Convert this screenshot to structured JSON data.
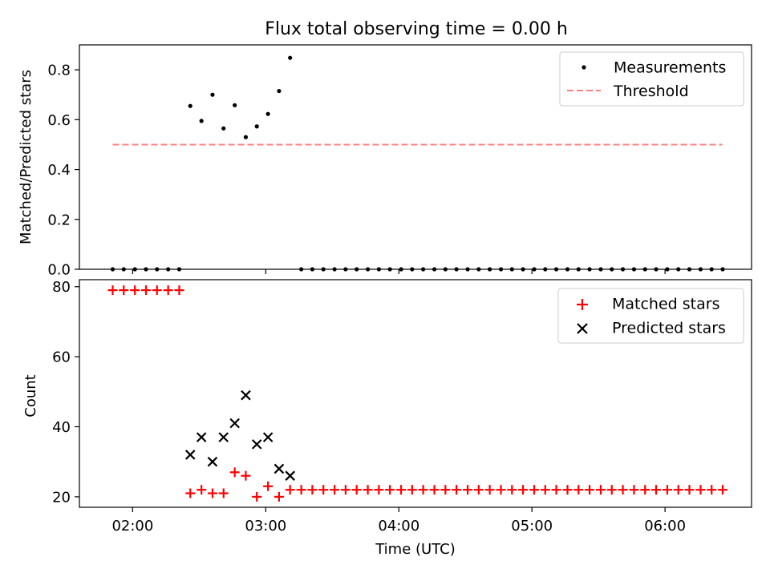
{
  "chart_data": {
    "title": "Flux total observing time = 0.00 h",
    "xlabel": "Time (UTC)",
    "x_ticks": [
      "02:00",
      "03:00",
      "04:00",
      "05:00",
      "06:00"
    ],
    "x_tick_hours": [
      2,
      3,
      4,
      5,
      6
    ],
    "xlim_hours": [
      1.6,
      6.65
    ],
    "top": {
      "type": "scatter",
      "ylabel": "Matched/Predicted stars",
      "ylim": [
        0,
        0.9
      ],
      "y_ticks": [
        "0.0",
        "0.2",
        "0.4",
        "0.6",
        "0.8"
      ],
      "y_tick_values": [
        0,
        0.2,
        0.4,
        0.6,
        0.8
      ],
      "threshold": {
        "name": "Threshold",
        "value": 0.5,
        "x_start_hours": 1.85,
        "x_end_hours": 6.43,
        "color": "#ff7f7f"
      },
      "measurements": {
        "name": "Measurements",
        "color": "#000000",
        "points": [
          [
            1.85,
            0
          ],
          [
            1.933,
            0
          ],
          [
            2.017,
            0
          ],
          [
            2.1,
            0
          ],
          [
            2.183,
            0
          ],
          [
            2.267,
            0
          ],
          [
            2.35,
            0
          ],
          [
            2.433,
            0.655
          ],
          [
            2.517,
            0.595
          ],
          [
            2.6,
            0.7
          ],
          [
            2.683,
            0.565
          ],
          [
            2.767,
            0.658
          ],
          [
            2.85,
            0.53
          ],
          [
            2.933,
            0.573
          ],
          [
            3.017,
            0.623
          ],
          [
            3.1,
            0.715
          ],
          [
            3.183,
            0.848
          ],
          [
            3.267,
            0
          ],
          [
            3.35,
            0
          ],
          [
            3.433,
            0
          ],
          [
            3.517,
            0
          ],
          [
            3.6,
            0
          ],
          [
            3.683,
            0
          ],
          [
            3.767,
            0
          ],
          [
            3.85,
            0
          ],
          [
            3.933,
            0
          ],
          [
            4.017,
            0
          ],
          [
            4.1,
            0
          ],
          [
            4.183,
            0
          ],
          [
            4.267,
            0
          ],
          [
            4.35,
            0
          ],
          [
            4.433,
            0
          ],
          [
            4.517,
            0
          ],
          [
            4.6,
            0
          ],
          [
            4.683,
            0
          ],
          [
            4.767,
            0
          ],
          [
            4.85,
            0
          ],
          [
            4.933,
            0
          ],
          [
            5.017,
            0
          ],
          [
            5.1,
            0
          ],
          [
            5.183,
            0
          ],
          [
            5.267,
            0
          ],
          [
            5.35,
            0
          ],
          [
            5.433,
            0
          ],
          [
            5.517,
            0
          ],
          [
            5.6,
            0
          ],
          [
            5.683,
            0
          ],
          [
            5.767,
            0
          ],
          [
            5.85,
            0
          ],
          [
            5.933,
            0
          ],
          [
            6.017,
            0
          ],
          [
            6.1,
            0
          ],
          [
            6.183,
            0
          ],
          [
            6.267,
            0
          ],
          [
            6.35,
            0
          ],
          [
            6.433,
            0
          ]
        ]
      },
      "legend_position": "upper-right"
    },
    "bottom": {
      "type": "scatter",
      "ylabel": "Count",
      "ylim": [
        17,
        82
      ],
      "y_ticks": [
        "20",
        "40",
        "60",
        "80"
      ],
      "y_tick_values": [
        20,
        40,
        60,
        80
      ],
      "matched": {
        "name": "Matched stars",
        "color": "#ff0000",
        "points": [
          [
            1.85,
            79
          ],
          [
            1.933,
            79
          ],
          [
            2.017,
            79
          ],
          [
            2.1,
            79
          ],
          [
            2.183,
            79
          ],
          [
            2.267,
            79
          ],
          [
            2.35,
            79
          ],
          [
            2.433,
            21
          ],
          [
            2.517,
            22
          ],
          [
            2.6,
            21
          ],
          [
            2.683,
            21
          ],
          [
            2.767,
            27
          ],
          [
            2.85,
            26
          ],
          [
            2.933,
            20
          ],
          [
            3.017,
            23
          ],
          [
            3.1,
            20
          ],
          [
            3.183,
            22
          ],
          [
            3.267,
            22
          ],
          [
            3.35,
            22
          ],
          [
            3.433,
            22
          ],
          [
            3.517,
            22
          ],
          [
            3.6,
            22
          ],
          [
            3.683,
            22
          ],
          [
            3.767,
            22
          ],
          [
            3.85,
            22
          ],
          [
            3.933,
            22
          ],
          [
            4.017,
            22
          ],
          [
            4.1,
            22
          ],
          [
            4.183,
            22
          ],
          [
            4.267,
            22
          ],
          [
            4.35,
            22
          ],
          [
            4.433,
            22
          ],
          [
            4.517,
            22
          ],
          [
            4.6,
            22
          ],
          [
            4.683,
            22
          ],
          [
            4.767,
            22
          ],
          [
            4.85,
            22
          ],
          [
            4.933,
            22
          ],
          [
            5.017,
            22
          ],
          [
            5.1,
            22
          ],
          [
            5.183,
            22
          ],
          [
            5.267,
            22
          ],
          [
            5.35,
            22
          ],
          [
            5.433,
            22
          ],
          [
            5.517,
            22
          ],
          [
            5.6,
            22
          ],
          [
            5.683,
            22
          ],
          [
            5.767,
            22
          ],
          [
            5.85,
            22
          ],
          [
            5.933,
            22
          ],
          [
            6.017,
            22
          ],
          [
            6.1,
            22
          ],
          [
            6.183,
            22
          ],
          [
            6.267,
            22
          ],
          [
            6.35,
            22
          ],
          [
            6.433,
            22
          ]
        ]
      },
      "predicted": {
        "name": "Predicted stars",
        "color": "#000000",
        "points": [
          [
            2.433,
            32
          ],
          [
            2.517,
            37
          ],
          [
            2.6,
            30
          ],
          [
            2.683,
            37
          ],
          [
            2.767,
            41
          ],
          [
            2.85,
            49
          ],
          [
            2.933,
            35
          ],
          [
            3.017,
            37
          ],
          [
            3.1,
            28
          ],
          [
            3.183,
            26
          ]
        ]
      },
      "legend_position": "upper-right"
    }
  }
}
